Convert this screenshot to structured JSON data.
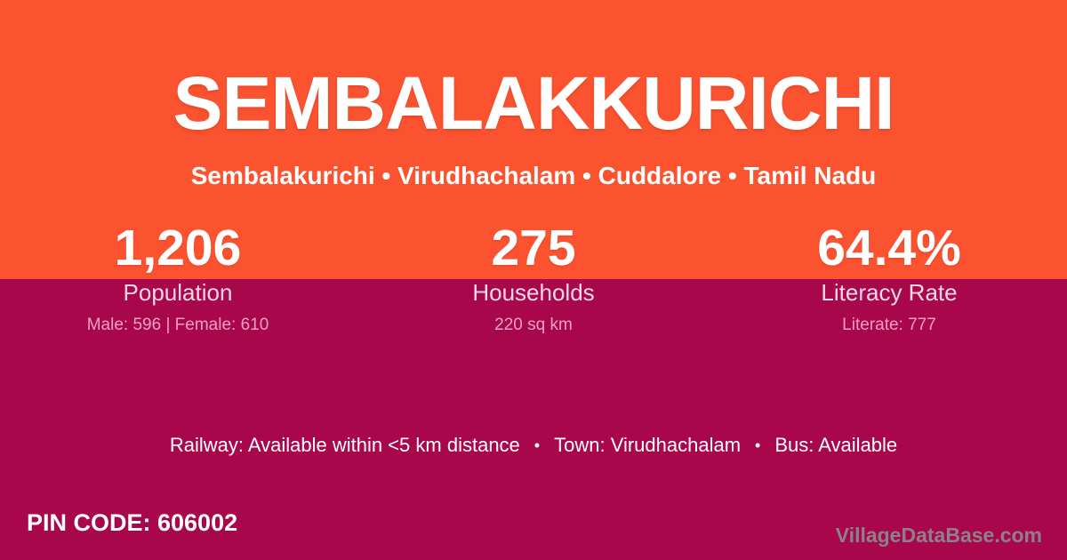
{
  "card": {
    "title": "SEMBALAKKURICHI",
    "breadcrumb": {
      "text": "Sembalakurichi • Virudhachalam • Cuddalore • Tamil Nadu",
      "parts": [
        "Sembalakurichi",
        "Virudhachalam",
        "Cuddalore",
        "Tamil Nadu"
      ],
      "separator": "•"
    },
    "stats": [
      {
        "value": "1,206",
        "label": "Population",
        "detail": "Male: 596 | Female: 610"
      },
      {
        "value": "275",
        "label": "Households",
        "detail": "220 sq km"
      },
      {
        "value": "64.4%",
        "label": "Literacy Rate",
        "detail": "Literate: 777"
      }
    ],
    "info": {
      "railway": "Railway: Available within <5 km distance",
      "town": "Town: Virudhachalam",
      "bus": "Bus: Available",
      "separator": "•"
    },
    "pin_code": "PIN CODE: 606002",
    "watermark": "VillageDataBase.com",
    "colors": {
      "top_background": "#FB522F",
      "bottom_background": "#A8074B",
      "primary_text": "#FFFFFF",
      "label_text": "#F7D7E3",
      "detail_text": "#F2A0BF",
      "watermark_text": "#8E8089"
    }
  }
}
